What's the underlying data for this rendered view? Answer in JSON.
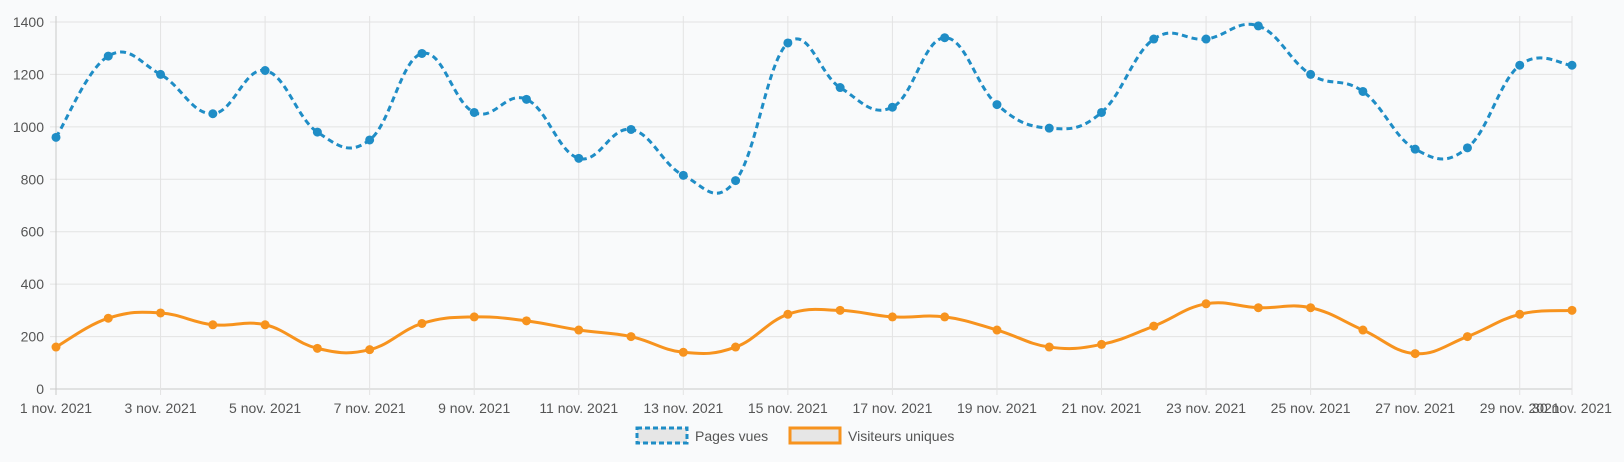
{
  "chart_data": {
    "type": "line",
    "x": [
      "1 nov. 2021",
      "2 nov. 2021",
      "3 nov. 2021",
      "4 nov. 2021",
      "5 nov. 2021",
      "6 nov. 2021",
      "7 nov. 2021",
      "8 nov. 2021",
      "9 nov. 2021",
      "10 nov. 2021",
      "11 nov. 2021",
      "12 nov. 2021",
      "13 nov. 2021",
      "14 nov. 2021",
      "15 nov. 2021",
      "16 nov. 2021",
      "17 nov. 2021",
      "18 nov. 2021",
      "19 nov. 2021",
      "20 nov. 2021",
      "21 nov. 2021",
      "22 nov. 2021",
      "23 nov. 2021",
      "24 nov. 2021",
      "25 nov. 2021",
      "26 nov. 2021",
      "27 nov. 2021",
      "28 nov. 2021",
      "29 nov. 2021",
      "30 nov. 2021"
    ],
    "tick_labels": [
      "1 nov. 2021",
      "3 nov. 2021",
      "5 nov. 2021",
      "7 nov. 2021",
      "9 nov. 2021",
      "11 nov. 2021",
      "13 nov. 2021",
      "15 nov. 2021",
      "17 nov. 2021",
      "19 nov. 2021",
      "21 nov. 2021",
      "23 nov. 2021",
      "25 nov. 2021",
      "27 nov. 2021",
      "29 nov. 2021",
      "30 nov. 2021"
    ],
    "yticks": [
      0,
      200,
      400,
      600,
      800,
      1000,
      1200,
      1400
    ],
    "ylim": [
      0,
      1400
    ],
    "grid": true,
    "legend_position": "bottom",
    "series": [
      {
        "name": "Pages vues",
        "color": "#1f8dc6",
        "style": "dashed",
        "values": [
          960,
          1270,
          1200,
          1050,
          1215,
          980,
          950,
          1280,
          1055,
          1105,
          880,
          990,
          815,
          795,
          1320,
          1150,
          1075,
          1340,
          1085,
          995,
          1055,
          1335,
          1335,
          1385,
          1200,
          1135,
          915,
          920,
          1235,
          1235
        ]
      },
      {
        "name": "Visiteurs uniques",
        "color": "#f7931e",
        "style": "solid",
        "values": [
          160,
          270,
          290,
          245,
          245,
          155,
          150,
          250,
          275,
          260,
          225,
          200,
          140,
          160,
          285,
          300,
          275,
          275,
          225,
          160,
          170,
          240,
          325,
          310,
          310,
          225,
          135,
          200,
          285,
          300
        ]
      }
    ]
  }
}
